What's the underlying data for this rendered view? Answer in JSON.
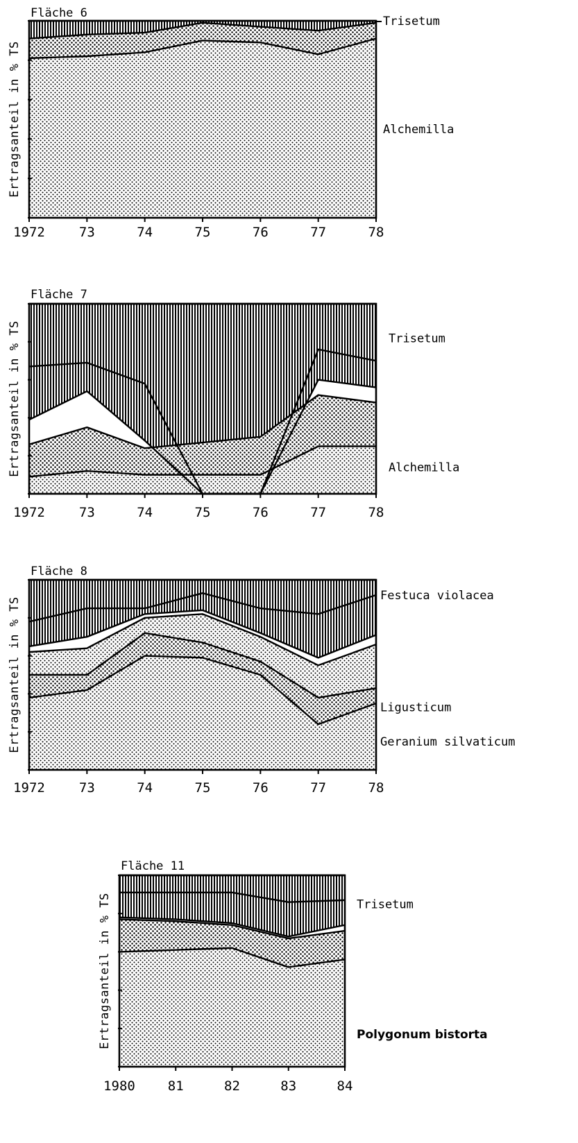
{
  "ylabel": "Ertragsanteil in % TS",
  "chart_data": [
    {
      "type": "area",
      "title": "Fläche 6",
      "x": [
        "1972",
        "73",
        "74",
        "75",
        "76",
        "77",
        "78"
      ],
      "ylim": [
        0,
        100
      ],
      "ylabel": "Ertragsanteil in % TS",
      "boundaries": [
        {
          "fill": "dots",
          "values": [
            81,
            82,
            84,
            90,
            89,
            83,
            91
          ]
        },
        {
          "fill": "dots-coarse",
          "values": [
            91,
            93,
            94,
            99,
            97,
            95,
            99
          ]
        },
        {
          "fill": "vstripes",
          "values": [
            100,
            100,
            100,
            100,
            100,
            100,
            100
          ]
        }
      ],
      "labels": [
        {
          "text": "Trisetum",
          "y": 100
        },
        {
          "text": "Alchemilla",
          "y": 45
        }
      ]
    },
    {
      "type": "area",
      "title": "Fläche 7",
      "x": [
        "1972",
        "73",
        "74",
        "75",
        "76",
        "77",
        "78"
      ],
      "ylim": [
        0,
        100
      ],
      "ylabel": "Ertragsanteil in % TS",
      "boundaries": [
        {
          "fill": "dots",
          "values": [
            9,
            12,
            10,
            10,
            10,
            25,
            25
          ]
        },
        {
          "fill": "dots-coarse",
          "values": [
            26,
            35,
            24,
            27,
            30,
            52,
            48
          ]
        },
        {
          "fill": "white",
          "values": [
            39,
            54,
            28,
            0,
            0,
            60,
            56
          ]
        },
        {
          "fill": "vstripes",
          "values": [
            67,
            69,
            58,
            0,
            0,
            76,
            70
          ]
        },
        {
          "fill": "vstripes",
          "values": [
            100,
            100,
            100,
            100,
            100,
            100,
            100
          ]
        }
      ],
      "labels": [
        {
          "text": "Trisetum",
          "y": 82
        },
        {
          "text": "Alchemilla",
          "y": 14
        }
      ]
    },
    {
      "type": "area",
      "title": "Fläche 8",
      "x": [
        "1972",
        "73",
        "74",
        "75",
        "76",
        "77",
        "78"
      ],
      "ylim": [
        0,
        100
      ],
      "ylabel": "Ertragsanteil in % TS",
      "boundaries": [
        {
          "fill": "dots",
          "values": [
            38,
            42,
            60,
            59,
            50,
            24,
            35
          ]
        },
        {
          "fill": "dots-coarse",
          "values": [
            50,
            50,
            72,
            67,
            57,
            38,
            43
          ]
        },
        {
          "fill": "dots",
          "values": [
            62,
            64,
            80,
            82,
            70,
            55,
            66
          ]
        },
        {
          "fill": "white",
          "values": [
            65,
            70,
            82,
            84,
            72,
            59,
            71
          ]
        },
        {
          "fill": "vstripes",
          "values": [
            78,
            85,
            85,
            93,
            85,
            82,
            92
          ]
        },
        {
          "fill": "vstripes",
          "values": [
            100,
            100,
            100,
            100,
            100,
            100,
            100
          ]
        }
      ],
      "labels": [
        {
          "text": "Festuca violacea",
          "y": 92
        },
        {
          "text": "Ligusticum",
          "y": 33
        },
        {
          "text": "Geranium silvaticum",
          "y": 15
        }
      ]
    },
    {
      "type": "area",
      "title": "Fläche 11",
      "x": [
        "1980",
        "81",
        "82",
        "83",
        "84"
      ],
      "ylim": [
        0,
        100
      ],
      "ylabel": "Ertragsanteil in % TS",
      "boundaries": [
        {
          "fill": "dots",
          "values": [
            60,
            61,
            62,
            52,
            56
          ]
        },
        {
          "fill": "dots-coarse",
          "values": [
            77,
            76,
            74,
            67,
            71
          ]
        },
        {
          "fill": "white",
          "values": [
            78,
            77,
            75,
            68,
            74
          ]
        },
        {
          "fill": "vstripes",
          "values": [
            91,
            91,
            91,
            86,
            87
          ]
        },
        {
          "fill": "vstripes",
          "values": [
            100,
            100,
            100,
            100,
            100
          ]
        }
      ],
      "labels": [
        {
          "text": "Trisetum",
          "y": 85
        },
        {
          "text": "Polygonum bistorta",
          "y": 17
        }
      ]
    }
  ]
}
